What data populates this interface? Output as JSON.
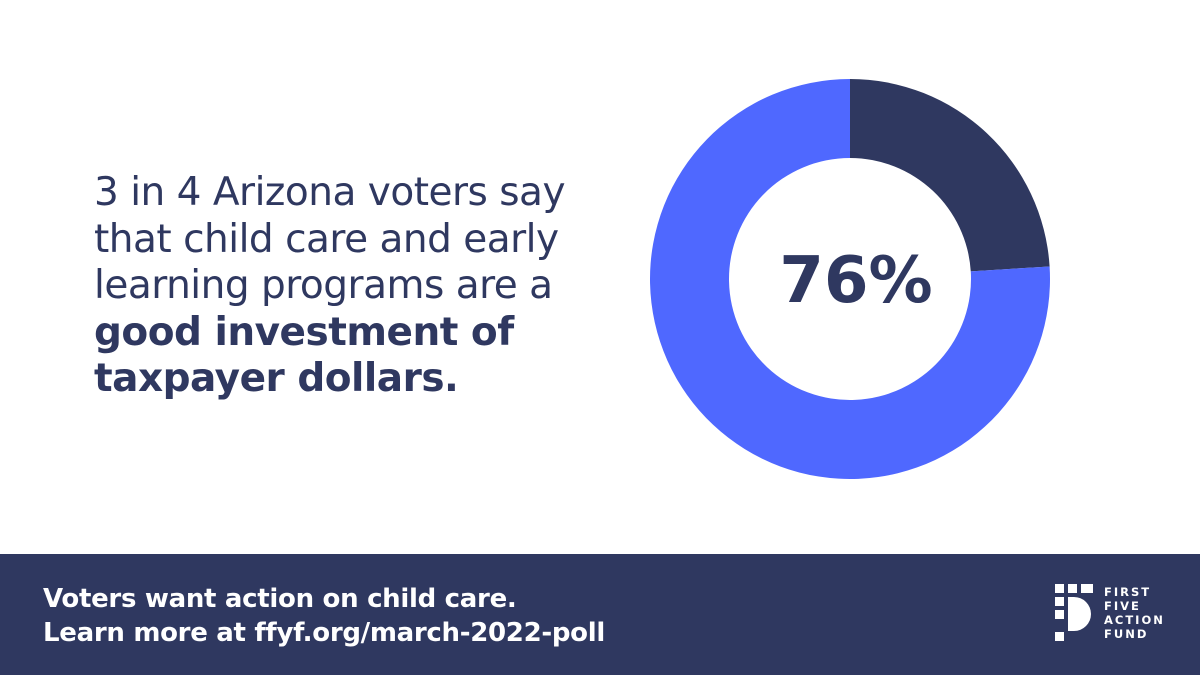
{
  "headline": {
    "line1": "3 in 4 Arizona voters say",
    "line2": "that child care and early",
    "line3": "learning programs are a",
    "line4_bold": "good investment of",
    "line5_bold": "taxpayer dollars."
  },
  "footer": {
    "line1": "Voters want action on child care.",
    "line2": "Learn more at ffyf.org/march-2022-poll"
  },
  "logo": {
    "words": [
      "FIRST",
      "FIVE",
      "ACTION",
      "FUND"
    ]
  },
  "colors": {
    "navy": "#2f3860",
    "blue": "#4f68ff",
    "white": "#ffffff"
  },
  "chart_data": {
    "type": "pie",
    "donut": true,
    "center_label": "76%",
    "slices": [
      {
        "value": 76,
        "color": "#4f68ff"
      },
      {
        "value": 24,
        "color": "#2f3860"
      }
    ]
  }
}
